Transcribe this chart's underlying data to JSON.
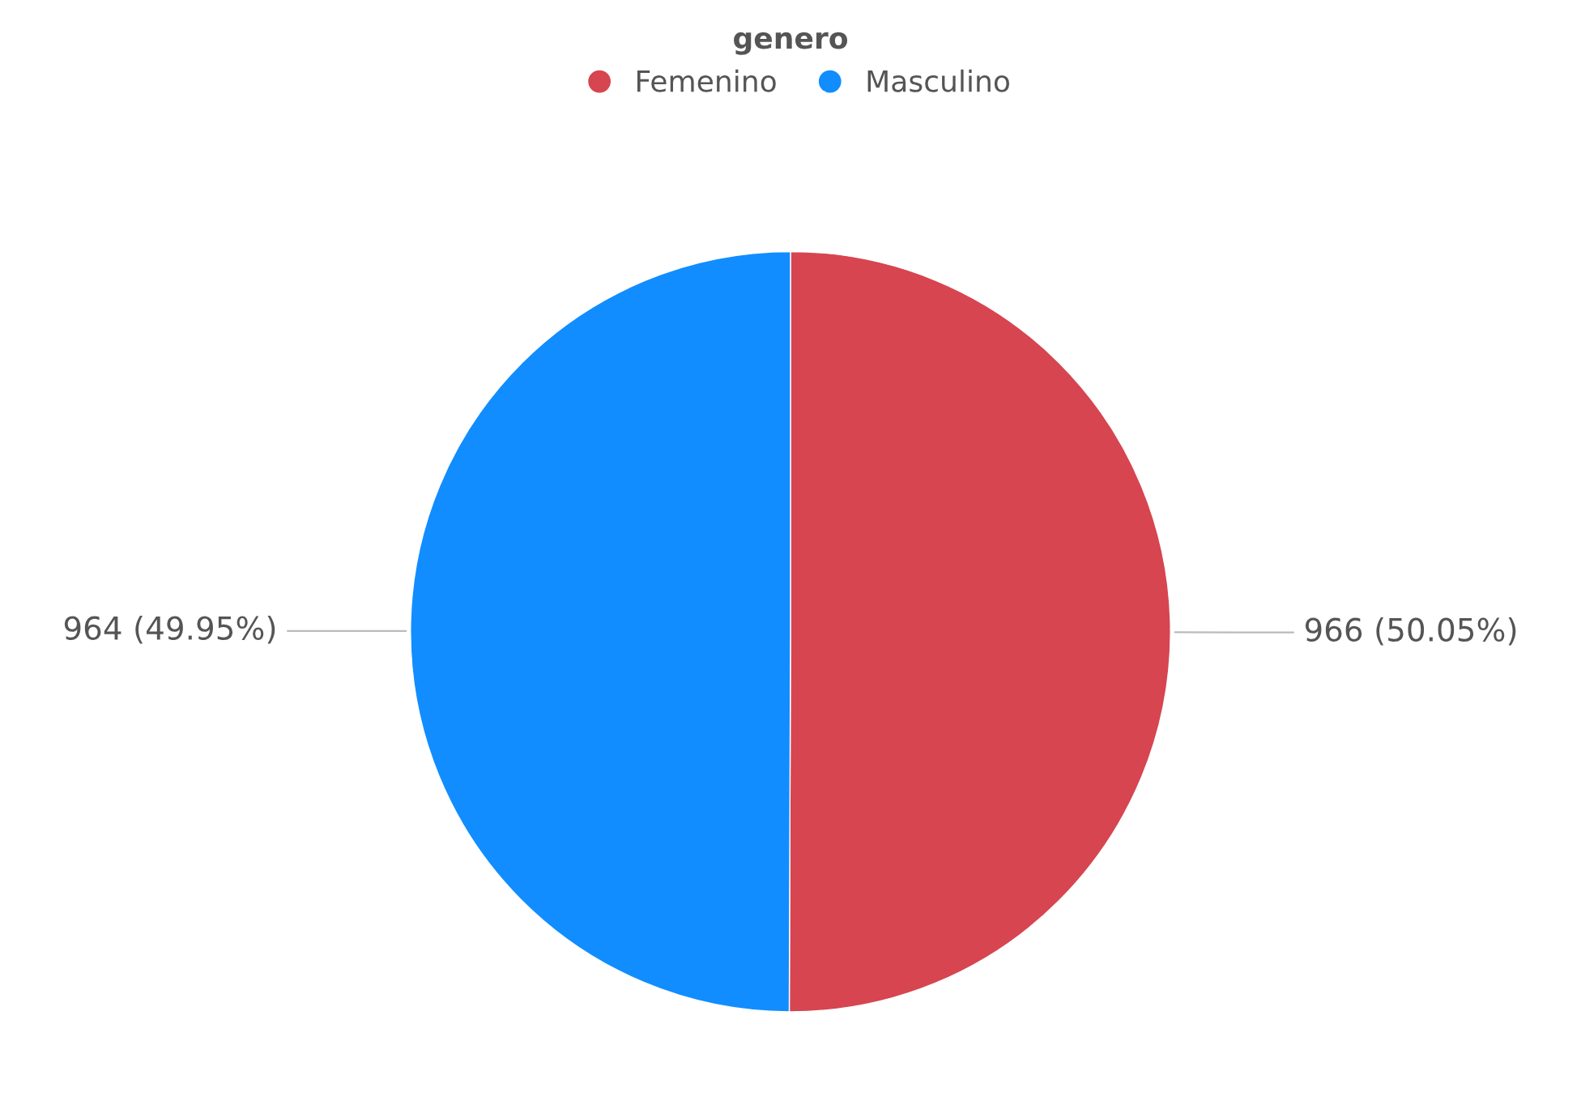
{
  "chart_data": {
    "type": "pie",
    "legend_title": "genero",
    "legend": "top",
    "categories": [
      "Femenino",
      "Masculino"
    ],
    "values": [
      966,
      964
    ],
    "colors": [
      "#d64550",
      "#118dff"
    ],
    "value_labels": [
      "966 (50.05%)",
      "964 (49.95%)"
    ]
  }
}
